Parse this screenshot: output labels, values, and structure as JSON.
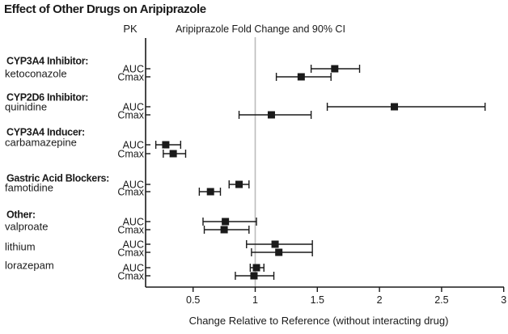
{
  "title": "Effect of Other Drugs on Aripiprazole",
  "chart_data": {
    "type": "forest",
    "pk_column_header": "PK",
    "plot_header": "Aripiprazole Fold Change and 90% CI",
    "xlabel": "Change Relative to Reference (without interacting drug)",
    "x_ticks": [
      "0.5",
      "1",
      "1.5",
      "2",
      "2.5",
      "3"
    ],
    "x_tick_values": [
      0.5,
      1,
      1.5,
      2,
      2.5,
      3
    ],
    "xlim": [
      0.12,
      3.0
    ],
    "reference_value": 1,
    "grid": false,
    "legend": "none",
    "groups": [
      {
        "category": "CYP3A4 Inhibitor:",
        "drug": "ketoconazole",
        "rows": [
          {
            "pk": "AUC",
            "value": 1.64,
            "ci_low": 1.45,
            "ci_high": 1.84
          },
          {
            "pk": "Cmax",
            "value": 1.37,
            "ci_low": 1.17,
            "ci_high": 1.61
          }
        ]
      },
      {
        "category": "CYP2D6 Inhibitor:",
        "drug": "quinidine",
        "rows": [
          {
            "pk": "AUC",
            "value": 2.12,
            "ci_low": 1.58,
            "ci_high": 2.85
          },
          {
            "pk": "Cmax",
            "value": 1.13,
            "ci_low": 0.87,
            "ci_high": 1.45
          }
        ]
      },
      {
        "category": "CYP3A4 Inducer:",
        "drug": "carbamazepine",
        "rows": [
          {
            "pk": "AUC",
            "value": 0.28,
            "ci_low": 0.2,
            "ci_high": 0.4
          },
          {
            "pk": "Cmax",
            "value": 0.34,
            "ci_low": 0.26,
            "ci_high": 0.44
          }
        ]
      },
      {
        "category": "Gastric Acid Blockers:",
        "drug": "famotidine",
        "rows": [
          {
            "pk": "AUC",
            "value": 0.87,
            "ci_low": 0.79,
            "ci_high": 0.95
          },
          {
            "pk": "Cmax",
            "value": 0.64,
            "ci_low": 0.55,
            "ci_high": 0.72
          }
        ]
      },
      {
        "category": "Other:",
        "drug": "valproate",
        "rows": [
          {
            "pk": "AUC",
            "value": 0.76,
            "ci_low": 0.58,
            "ci_high": 1.01
          },
          {
            "pk": "Cmax",
            "value": 0.75,
            "ci_low": 0.59,
            "ci_high": 0.95
          }
        ]
      },
      {
        "category": "",
        "drug": "lithium",
        "rows": [
          {
            "pk": "AUC",
            "value": 1.16,
            "ci_low": 0.93,
            "ci_high": 1.46
          },
          {
            "pk": "Cmax",
            "value": 1.19,
            "ci_low": 0.97,
            "ci_high": 1.46
          }
        ]
      },
      {
        "category": "",
        "drug": "lorazepam",
        "rows": [
          {
            "pk": "AUC",
            "value": 1.01,
            "ci_low": 0.96,
            "ci_high": 1.07
          },
          {
            "pk": "Cmax",
            "value": 0.99,
            "ci_low": 0.84,
            "ci_high": 1.15
          }
        ]
      }
    ],
    "colors": {
      "marker": "#1a1a1a",
      "axis": "#1a1a1a",
      "text": "#1a1a1a",
      "reference_line": "#bcbcbc",
      "background": "#ffffff"
    }
  }
}
